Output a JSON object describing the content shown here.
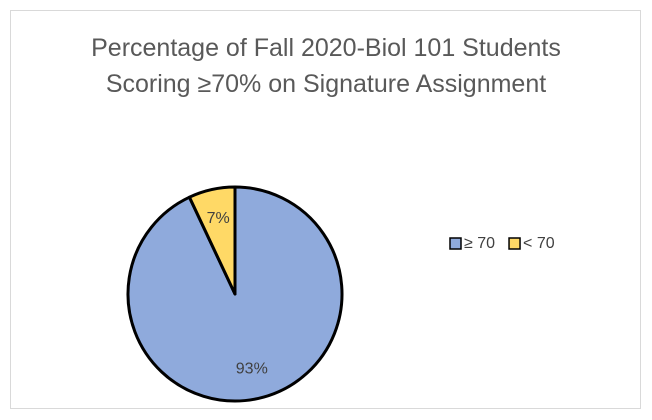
{
  "chart_data": {
    "type": "pie",
    "title": "Percentage of Fall 2020-Biol 101 Students Scoring ≥70% on Signature Assignment",
    "categories": [
      "≥ 70",
      "< 70"
    ],
    "values": [
      93,
      7
    ],
    "value_labels": [
      "93%",
      "7%"
    ],
    "colors": [
      "#8faadc",
      "#ffd966"
    ],
    "legend": "right"
  }
}
